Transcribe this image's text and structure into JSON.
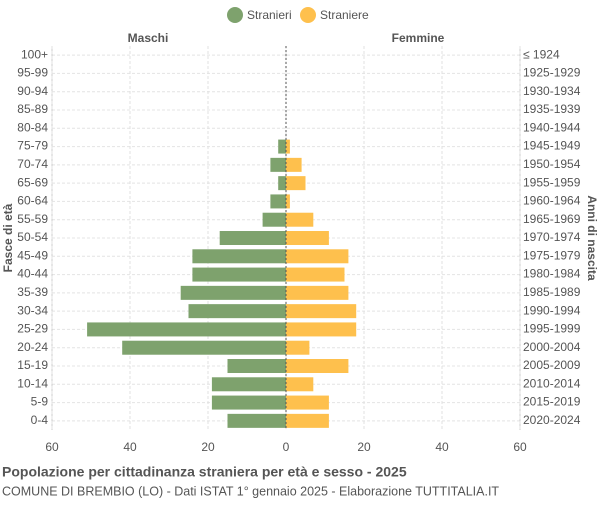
{
  "chart_data": {
    "type": "pyramid",
    "title": "Popolazione per cittadinanza straniera per età e sesso - 2025",
    "subtitle": "COMUNE DI BREMBIO (LO) - Dati ISTAT 1° gennaio 2025 - Elaborazione TUTTITALIA.IT",
    "y_label": "Fasce di età",
    "y2_label": "Anni di nascita",
    "left_label": "Maschi",
    "right_label": "Femmine",
    "categories": [
      "100+",
      "95-99",
      "90-94",
      "85-89",
      "80-84",
      "75-79",
      "70-74",
      "65-69",
      "60-64",
      "55-59",
      "50-54",
      "45-49",
      "40-44",
      "35-39",
      "30-34",
      "25-29",
      "20-24",
      "15-19",
      "10-14",
      "5-9",
      "0-4"
    ],
    "birth_years": [
      "≤ 1924",
      "1925-1929",
      "1930-1934",
      "1935-1939",
      "1940-1944",
      "1945-1949",
      "1950-1954",
      "1955-1959",
      "1960-1964",
      "1965-1969",
      "1970-1974",
      "1975-1979",
      "1980-1984",
      "1985-1989",
      "1990-1994",
      "1995-1999",
      "2000-2004",
      "2005-2009",
      "2010-2014",
      "2015-2019",
      "2020-2024"
    ],
    "series": [
      {
        "name": "Stranieri",
        "color": "#7ea26d",
        "side": "left",
        "values": [
          0,
          0,
          0,
          0,
          0,
          2,
          4,
          2,
          4,
          6,
          17,
          24,
          24,
          27,
          25,
          51,
          42,
          15,
          19,
          19,
          15
        ]
      },
      {
        "name": "Straniere",
        "color": "#fec04d",
        "side": "right",
        "values": [
          0,
          0,
          0,
          0,
          0,
          1,
          4,
          5,
          1,
          7,
          11,
          16,
          15,
          16,
          18,
          18,
          6,
          16,
          7,
          11,
          11
        ]
      }
    ],
    "xlim": [
      -60,
      60
    ],
    "xticks": [
      {
        "value": -60,
        "label": "60"
      },
      {
        "value": -40,
        "label": "40"
      },
      {
        "value": -20,
        "label": "20"
      },
      0,
      20,
      40,
      60
    ],
    "grid": true
  }
}
